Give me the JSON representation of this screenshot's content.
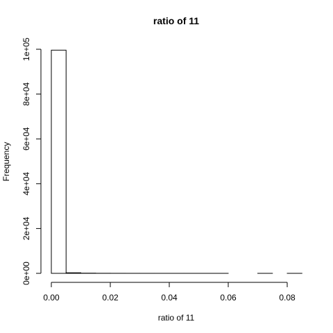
{
  "chart_data": {
    "type": "histogram",
    "title": "ratio of 11",
    "x_label": "ratio of 11",
    "y_label": "Frequency",
    "bins": [
      0,
      0.005,
      0.01,
      0.015,
      0.02,
      0.025,
      0.03,
      0.035,
      0.04,
      0.045,
      0.05,
      0.055,
      0.06,
      0.065,
      0.07,
      0.075,
      0.08,
      0.085
    ],
    "values": [
      99600,
      250,
      80,
      30,
      15,
      8,
      5,
      3,
      2,
      1,
      1,
      1,
      0,
      0,
      1,
      0,
      1
    ],
    "color": "#ffffff",
    "xlim": [
      0,
      0.08
    ],
    "xticks": [
      {
        "value": 0,
        "label": "0.00"
      },
      0.02,
      0.04,
      0.06,
      0.08
    ],
    "ylim": [
      0,
      100000
    ],
    "yticks": [
      {
        "value": 0,
        "label": "0e+00"
      },
      {
        "value": 20000,
        "label": "2e+04"
      },
      {
        "value": 40000,
        "label": "4e+04"
      },
      {
        "value": 60000,
        "label": "6e+04"
      },
      {
        "value": 80000,
        "label": "8e+04"
      },
      {
        "value": 100000,
        "label": "1e+05"
      }
    ]
  }
}
